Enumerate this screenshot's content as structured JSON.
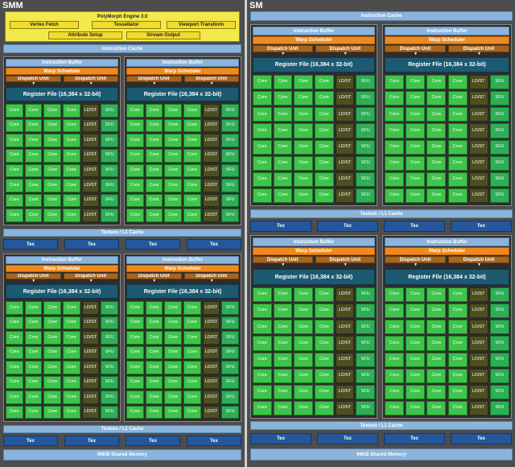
{
  "smm": {
    "title": "SMM",
    "polymorph": {
      "title": "PolyMorph Engine 3.0",
      "units": [
        "Vertex Fetch",
        "Tessellator",
        "Viewport Transform",
        "Attribute Setup",
        "Stream Output"
      ]
    },
    "instruction_cache": "Instruction Cache",
    "texture_cache": "Texture / L1 Cache",
    "tex": [
      "Tex",
      "Tex",
      "Tex",
      "Tex"
    ],
    "shared_memory": "96KB Shared Memory"
  },
  "sm": {
    "title": "SM",
    "instruction_cache": "Instruction Cache",
    "texture_cache": "Texture / L1 Cache",
    "tex": [
      "Tex",
      "Tex",
      "Tex",
      "Tex"
    ],
    "shared_memory": "96KB Shared Memory"
  },
  "block": {
    "instruction_buffer": "Instruction Buffer",
    "warp_scheduler": "Warp Scheduler",
    "dispatch_units": [
      "Dispatch Unit",
      "Dispatch Unit"
    ],
    "register_file": "Register File (16,384 x 32-bit)",
    "columns": [
      "Core",
      "Core",
      "Core",
      "Core",
      "LD/ST",
      "SFU"
    ],
    "row_count": 8
  },
  "colors": {
    "panel": "#4d4d4d",
    "cache": "#8ab4dc",
    "tex": "#24579b",
    "scheduler": "#ef8a1e",
    "dispatch": "#a8651d",
    "register": "#1c5a72",
    "core": "#3fc44b",
    "ldst": "#4e4e24",
    "sfu": "#2eae56",
    "polymorph": "#f0dc2a"
  },
  "icons": {
    "dispatch_arrow": "down-arrow-icon"
  }
}
